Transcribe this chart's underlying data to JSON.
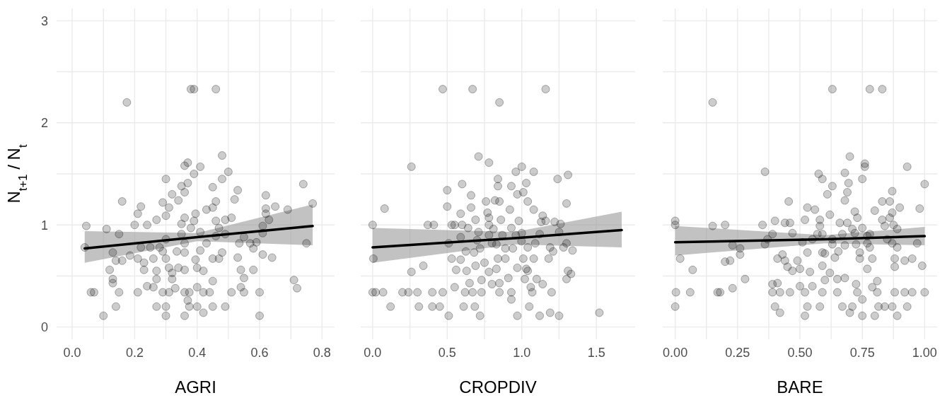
{
  "chart_data": [
    {
      "type": "scatter",
      "xlabel": "AGRI",
      "ylabel": "N$_{t+1}$ / N$_{t}$",
      "xlim": [
        -0.05,
        0.84
      ],
      "ylim": [
        -0.12,
        3.12
      ],
      "xticks": [
        {
          "value": 0,
          "label": "0.0"
        },
        {
          "value": 0.1,
          "label": null
        },
        {
          "value": 0.2,
          "label": "0.2"
        },
        {
          "value": 0.3,
          "label": null
        },
        {
          "value": 0.4,
          "label": "0.4"
        },
        {
          "value": 0.5,
          "label": null
        },
        {
          "value": 0.6,
          "label": "0.6"
        },
        {
          "value": 0.7,
          "label": null
        },
        {
          "value": 0.8,
          "label": "0.8"
        }
      ],
      "yticks": [
        0,
        {
          "value": 0.5,
          "label": null
        },
        1,
        {
          "value": 1.5,
          "label": null
        },
        2,
        {
          "value": 2.5,
          "label": null
        },
        3
      ],
      "grid": true,
      "series": [
        {
          "color": "#000000",
          "marker": "circle",
          "x": [
            0.04,
            0.045,
            0.11,
            0.15,
            0.16,
            0.13,
            0.14,
            0.12,
            0.13,
            0.13,
            0.06,
            0.07,
            0.1,
            0.14,
            0.15,
            0.185,
            0.16,
            0.2,
            0.21,
            0.22,
            0.21,
            0.22,
            0.23,
            0.23,
            0.24,
            0.24,
            0.21,
            0.25,
            0.26,
            0.27,
            0.27,
            0.27,
            0.26,
            0.27,
            0.28,
            0.29,
            0.3,
            0.29,
            0.29,
            0.3,
            0.3,
            0.3,
            0.31,
            0.31,
            0.3,
            0.3,
            0.31,
            0.32,
            0.32,
            0.32,
            0.33,
            0.335,
            0.34,
            0.34,
            0.35,
            0.35,
            0.35,
            0.36,
            0.36,
            0.36,
            0.37,
            0.37,
            0.36,
            0.36,
            0.36,
            0.36,
            0.36,
            0.37,
            0.375,
            0.375,
            0.38,
            0.39,
            0.39,
            0.395,
            0.395,
            0.4,
            0.4,
            0.4,
            0.41,
            0.41,
            0.41,
            0.42,
            0.42,
            0.43,
            0.42,
            0.43,
            0.44,
            0.45,
            0.45,
            0.45,
            0.45,
            0.45,
            0.46,
            0.46,
            0.46,
            0.47,
            0.47,
            0.48,
            0.48,
            0.48,
            0.49,
            0.49,
            0.49,
            0.5,
            0.51,
            0.51,
            0.52,
            0.53,
            0.53,
            0.535,
            0.54,
            0.54,
            0.55,
            0.55,
            0.55,
            0.57,
            0.58,
            0.58,
            0.59,
            0.6,
            0.6,
            0.61,
            0.61,
            0.61,
            0.62,
            0.62,
            0.62,
            0.63,
            0.64,
            0.65,
            0.69,
            0.71,
            0.72,
            0.74,
            0.75,
            0.77,
            0.38,
            0.39,
            0.46,
            0.175
          ],
          "values": [
            0.78,
            0.99,
            0.96,
            0.91,
            1.23,
            0.73,
            0.65,
            0.56,
            0.47,
            0.43,
            0.34,
            0.34,
            0.11,
            0.2,
            0.34,
            0.7,
            0.65,
            1.0,
            1.11,
            1.18,
            0.67,
            0.78,
            0.63,
            0.56,
            1.0,
            0.4,
            0.34,
            0.78,
            0.67,
            1.05,
            0.55,
            0.47,
            0.39,
            0.2,
            0.78,
            1.22,
            1.09,
            0.74,
            0.34,
            1.45,
            0.86,
            0.67,
            0.58,
            0.34,
            0.2,
            0.11,
            1.17,
            0.53,
            1.3,
            0.47,
            0.38,
            0.74,
            1.24,
            0.58,
            1.01,
            0.91,
            1.38,
            1.32,
            1.58,
            1.07,
            1.61,
            1.41,
            0.82,
            0.73,
            0.56,
            0.34,
            0.11,
            0.26,
            0.34,
            0.2,
            0.97,
            1.04,
            1.5,
            1.11,
            0.66,
            0.58,
            0.39,
            0.2,
            1.57,
            0.93,
            0.75,
            0.34,
            0.14,
            1.15,
            0.55,
            0.82,
            0.34,
            1.37,
            0.67,
            0.2,
            0.45,
            1.17,
            1.23,
            1.04,
            0.89,
            0.97,
            0.67,
            1.68,
            1.45,
            0.73,
            1.05,
            0.91,
            0.2,
            1.52,
            1.07,
            0.34,
            1.25,
            1.34,
            0.68,
            0.82,
            0.56,
            0.39,
            0.88,
            0.48,
            0.34,
            0.82,
            0.77,
            0.56,
            0.83,
            0.34,
            0.11,
            0.71,
            0.92,
            0.99,
            1.11,
            1.29,
            1.16,
            1.05,
            0.68,
            1.18,
            1.15,
            0.46,
            0.38,
            1.4,
            0.82,
            1.21,
            2.33,
            2.33,
            2.33,
            2.2
          ]
        },
        {
          "type": "line",
          "marker": "none",
          "color": "#000000",
          "x": [
            0.04,
            0.4,
            0.77
          ],
          "values": [
            0.77,
            0.88,
            0.99
          ],
          "lower": [
            0.63,
            0.84,
            0.8
          ],
          "upper": [
            0.94,
            0.92,
            1.2
          ]
        }
      ]
    },
    {
      "type": "scatter",
      "xlabel": "CROPDIV",
      "xlim": [
        -0.08,
        1.76
      ],
      "ylim": [
        -0.12,
        3.12
      ],
      "tick_labels": "x",
      "xticks": [
        {
          "value": 0,
          "label": "0.0"
        },
        {
          "value": 0.25,
          "label": null
        },
        {
          "value": 0.5,
          "label": "0.5"
        },
        {
          "value": 0.75,
          "label": null
        },
        {
          "value": 1,
          "label": "1.0"
        },
        {
          "value": 1.25,
          "label": null
        },
        {
          "value": 1.5,
          "label": "1.5"
        }
      ],
      "yticks": [
        0,
        {
          "value": 0.5,
          "label": null
        },
        1,
        {
          "value": 1.5,
          "label": null
        },
        2,
        {
          "value": 2.5,
          "label": null
        },
        3
      ],
      "grid": true,
      "series": [
        {
          "color": "#000000",
          "marker": "circle",
          "x": [
            0.0,
            0.005,
            0.0,
            0.02,
            0.07,
            0.08,
            0.12,
            0.2,
            0.24,
            0.26,
            0.26,
            0.3,
            0.31,
            0.34,
            0.37,
            0.41,
            0.4,
            0.4,
            0.45,
            0.47,
            0.5,
            0.5,
            0.51,
            0.51,
            0.53,
            0.55,
            0.53,
            0.56,
            0.55,
            0.59,
            0.59,
            0.59,
            0.6,
            0.6,
            0.61,
            0.62,
            0.625,
            0.63,
            0.64,
            0.65,
            0.66,
            0.66,
            0.67,
            0.68,
            0.685,
            0.69,
            0.69,
            0.7,
            0.71,
            0.71,
            0.72,
            0.73,
            0.73,
            0.72,
            0.75,
            0.76,
            0.77,
            0.78,
            0.78,
            0.78,
            0.78,
            0.78,
            0.8,
            0.8,
            0.81,
            0.82,
            0.83,
            0.83,
            0.84,
            0.84,
            0.85,
            0.85,
            0.85,
            0.86,
            0.87,
            0.84,
            0.89,
            0.89,
            0.91,
            0.92,
            0.93,
            0.93,
            0.93,
            0.93,
            0.94,
            0.96,
            0.96,
            0.97,
            0.97,
            0.97,
            0.98,
            0.998,
            1.0,
            1.0,
            1.01,
            1.01,
            1.02,
            1.03,
            1.03,
            1.04,
            1.04,
            1.04,
            1.05,
            1.06,
            1.07,
            1.08,
            1.08,
            1.08,
            1.09,
            1.1,
            1.12,
            1.12,
            1.13,
            1.14,
            1.14,
            1.16,
            1.18,
            1.19,
            1.19,
            1.2,
            1.21,
            1.22,
            1.24,
            1.25,
            1.25,
            1.26,
            1.28,
            1.3,
            1.3,
            1.3,
            1.31,
            1.31,
            1.33,
            1.34,
            1.52,
            0.47,
            0.67,
            1.16,
            0.85
          ],
          "values": [
            1.0,
            0.67,
            0.34,
            0.34,
            0.34,
            1.16,
            0.2,
            0.34,
            0.34,
            1.57,
            0.54,
            0.34,
            0.2,
            0.6,
            1.0,
            1.0,
            0.34,
            0.2,
            0.2,
            0.34,
            1.34,
            1.18,
            0.82,
            0.11,
            1.0,
            1.0,
            0.67,
            0.56,
            0.39,
            0.66,
            0.88,
            1.11,
            1.4,
            1.0,
            0.2,
            0.34,
            0.74,
            0.55,
            0.97,
            0.43,
            1.29,
            1.17,
            0.34,
            0.73,
            0.2,
            0.6,
            1.05,
            0.85,
            1.67,
            0.93,
            0.77,
            0.34,
            0.46,
            0.11,
            0.63,
            1.23,
            1.12,
            1.61,
            1.0,
            0.54,
            0.9,
            1.07,
            0.42,
            0.82,
            0.96,
            1.24,
            0.81,
            0.57,
            1.45,
            1.38,
            0.34,
            0.43,
            1.23,
            1.05,
            0.9,
            0.67,
            0.67,
            0.77,
            0.48,
            1.15,
            1.38,
            0.34,
            0.27,
            0.97,
            0.77,
            0.9,
            1.52,
            1.3,
            0.58,
            0.11,
            1.04,
            0.84,
            0.92,
            1.57,
            1.32,
            0.67,
            0.47,
            0.57,
            1.41,
            0.78,
            1.23,
            0.55,
            0.2,
            0.39,
            0.34,
            1.52,
            0.67,
            1.15,
            0.82,
            0.47,
            0.11,
            0.91,
            1.03,
            1.09,
            0.42,
            1.04,
            0.67,
            0.78,
            0.14,
            0.34,
            0.74,
            1.03,
            1.45,
            0.93,
            0.11,
            1.01,
            0.78,
            0.82,
            0.47,
            1.21,
            0.55,
            1.49,
            0.52,
            0.75,
            0.14,
            2.33,
            2.33,
            2.33,
            2.2
          ]
        },
        {
          "type": "line",
          "marker": "none",
          "color": "#000000",
          "x": [
            0.0,
            0.95,
            1.67
          ],
          "values": [
            0.78,
            0.87,
            0.95
          ],
          "lower": [
            0.63,
            0.81,
            0.78
          ],
          "upper": [
            0.97,
            0.93,
            1.13
          ]
        }
      ]
    },
    {
      "type": "scatter",
      "xlabel": "BARE",
      "xlim": [
        -0.05,
        1.05
      ],
      "ylim": [
        -0.12,
        3.12
      ],
      "tick_labels": "x",
      "xticks": [
        {
          "value": 0,
          "label": "0.00"
        },
        {
          "value": 0.125,
          "label": null
        },
        {
          "value": 0.25,
          "label": "0.25"
        },
        {
          "value": 0.375,
          "label": null
        },
        {
          "value": 0.5,
          "label": "0.50"
        },
        {
          "value": 0.625,
          "label": null
        },
        {
          "value": 0.75,
          "label": "0.75"
        },
        {
          "value": 0.875,
          "label": null
        },
        {
          "value": 1,
          "label": "1.00"
        }
      ],
      "yticks": [
        0,
        {
          "value": 0.5,
          "label": null
        },
        1,
        {
          "value": 1.5,
          "label": null
        },
        2,
        {
          "value": 2.5,
          "label": null
        },
        3
      ],
      "grid": true,
      "series": [
        {
          "color": "#000000",
          "marker": "circle",
          "x": [
            0.0,
            0.0,
            0.003,
            0.0,
            0.02,
            0.06,
            0.07,
            0.15,
            0.15,
            0.17,
            0.18,
            0.2,
            0.2,
            0.22,
            0.23,
            0.23,
            0.26,
            0.26,
            0.28,
            0.35,
            0.36,
            0.36,
            0.37,
            0.39,
            0.39,
            0.41,
            0.39,
            0.42,
            0.4,
            0.4,
            0.41,
            0.42,
            0.43,
            0.44,
            0.44,
            0.45,
            0.455,
            0.46,
            0.46,
            0.47,
            0.47,
            0.49,
            0.5,
            0.5,
            0.51,
            0.52,
            0.52,
            0.52,
            0.53,
            0.53,
            0.53,
            0.54,
            0.55,
            0.55,
            0.56,
            0.57,
            0.575,
            0.58,
            0.58,
            0.58,
            0.59,
            0.59,
            0.59,
            0.59,
            0.59,
            0.6,
            0.6,
            0.61,
            0.62,
            0.63,
            0.62,
            0.63,
            0.63,
            0.64,
            0.65,
            0.65,
            0.654,
            0.66,
            0.67,
            0.67,
            0.68,
            0.68,
            0.68,
            0.68,
            0.69,
            0.69,
            0.695,
            0.7,
            0.7,
            0.71,
            0.71,
            0.72,
            0.72,
            0.725,
            0.725,
            0.73,
            0.73,
            0.74,
            0.74,
            0.75,
            0.75,
            0.75,
            0.75,
            0.76,
            0.76,
            0.77,
            0.77,
            0.77,
            0.78,
            0.78,
            0.79,
            0.79,
            0.8,
            0.8,
            0.81,
            0.81,
            0.815,
            0.83,
            0.83,
            0.84,
            0.84,
            0.85,
            0.86,
            0.86,
            0.87,
            0.87,
            0.875,
            0.87,
            0.87,
            0.88,
            0.88,
            0.88,
            0.89,
            0.89,
            0.89,
            0.9,
            0.92,
            0.92,
            0.93,
            0.93,
            0.95,
            0.95,
            0.97,
            0.98,
            0.99,
            1.0,
            1.0,
            0.63,
            0.78,
            0.83
          ],
          "values": [
            1.04,
            1.0,
            0.34,
            0.2,
            0.67,
            0.34,
            0.56,
            2.2,
            0.99,
            0.34,
            0.34,
            1.0,
            0.64,
            0.65,
            0.38,
            0.8,
            0.71,
            0.77,
            0.47,
            1.0,
            1.52,
            0.81,
            0.86,
            0.91,
            0.42,
            0.43,
            0.34,
            0.34,
            1.04,
            0.2,
            0.67,
            0.14,
            0.71,
            0.65,
            1.02,
            0.59,
            1.23,
            1.02,
            0.34,
            0.92,
            0.55,
            0.65,
            0.57,
            0.4,
            0.83,
            1.05,
            0.11,
            0.34,
            0.2,
            0.73,
            1.17,
            0.54,
            0.4,
            0.86,
            1.15,
            0.91,
            1.5,
            0.99,
            1.05,
            0.2,
            0.6,
            1.45,
            0.91,
            0.34,
            0.73,
            0.46,
            0.72,
            1.3,
            1.1,
            1.38,
            0.53,
            0.86,
            0.81,
            0.68,
            0.47,
            0.34,
            0.74,
            1.02,
            0.2,
            0.91,
            1.24,
            0.48,
            0.8,
            1.51,
            1.02,
            1.32,
            1.41,
            0.14,
            1.67,
            0.96,
            0.2,
            0.92,
            1.13,
            0.81,
            0.42,
            0.34,
            1.07,
            0.73,
            0.67,
            1.45,
            0.27,
            0.11,
            0.97,
            1.6,
            1.57,
            0.82,
            0.89,
            0.57,
            0.78,
            0.91,
            0.39,
            0.67,
            1.14,
            0.11,
            0.45,
            0.34,
            0.2,
            1.23,
            1.05,
            0.2,
            0.99,
            0.86,
            1.23,
            1.07,
            1.12,
            0.82,
            1.0,
            0.2,
            1.33,
            0.67,
            0.59,
            0.34,
            0.96,
            0.78,
            0.11,
            1.17,
            0.34,
            0.65,
            1.57,
            0.2,
            0.34,
            0.67,
            0.82,
            1.16,
            0.6,
            1.4,
            0.34,
            2.33,
            2.33,
            2.33
          ]
        },
        {
          "type": "line",
          "marker": "none",
          "color": "#000000",
          "x": [
            0.0,
            0.6,
            1.0
          ],
          "values": [
            0.83,
            0.86,
            0.89
          ],
          "lower": [
            0.7,
            0.82,
            0.8
          ],
          "upper": [
            0.99,
            0.9,
            0.98
          ]
        }
      ]
    }
  ]
}
